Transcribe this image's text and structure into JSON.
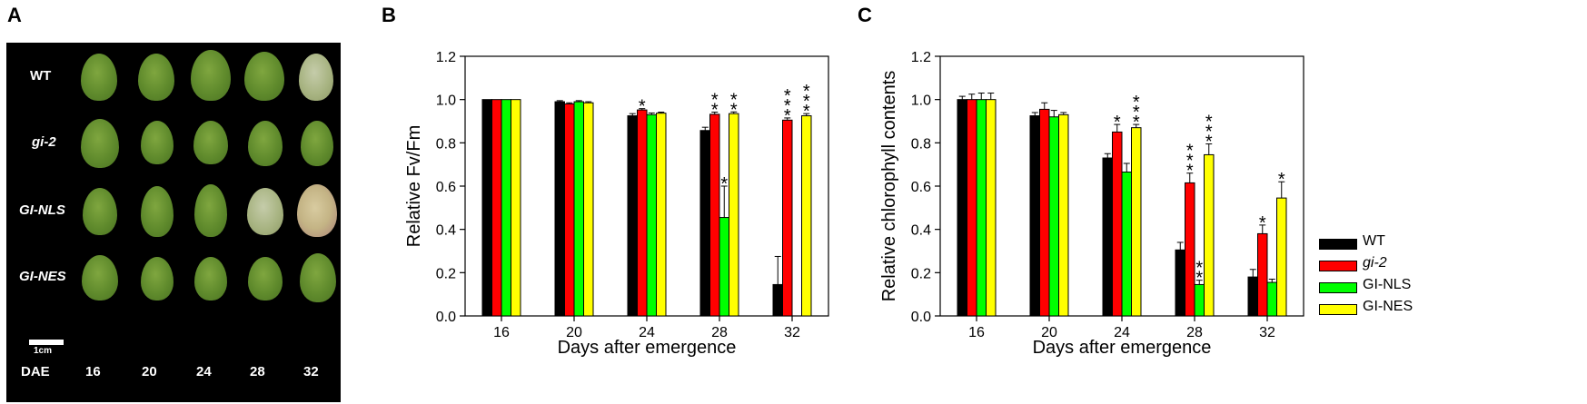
{
  "panels": {
    "a": {
      "letter": "A"
    },
    "b": {
      "letter": "B"
    },
    "c": {
      "letter": "C"
    }
  },
  "photo_panel": {
    "row_labels": [
      "WT",
      "gi-2",
      "GI-NLS",
      "GI-NES"
    ],
    "dae_label": "DAE",
    "day_labels": [
      "16",
      "20",
      "24",
      "28",
      "32"
    ],
    "scale_bar_label": "1cm"
  },
  "legend": [
    {
      "label": "WT",
      "color": "#000000"
    },
    {
      "label": "gi-2",
      "color": "#ff0000"
    },
    {
      "label": "GI-NLS",
      "color": "#00ff00"
    },
    {
      "label": "GI-NES",
      "color": "#ffff00"
    }
  ],
  "chart_data": [
    {
      "type": "bar",
      "panel": "B",
      "categories": [
        "16",
        "20",
        "24",
        "28",
        "32"
      ],
      "xlabel": "Days after emergence",
      "ylabel": "Relative Fv/Fm",
      "ylim": [
        0.0,
        1.2
      ],
      "yticks": [
        "0.0",
        "0.2",
        "0.4",
        "0.6",
        "0.8",
        "1.0",
        "1.2"
      ],
      "series": [
        {
          "name": "WT",
          "values": [
            1.0,
            0.99,
            0.925,
            0.857,
            0.145
          ],
          "errors": [
            0.0,
            0.005,
            0.01,
            0.015,
            0.13
          ]
        },
        {
          "name": "gi-2",
          "values": [
            1.0,
            0.98,
            0.952,
            0.932,
            0.905
          ],
          "errors": [
            0.0,
            0.005,
            0.006,
            0.01,
            0.01
          ]
        },
        {
          "name": "GI-NLS",
          "values": [
            1.0,
            0.99,
            0.93,
            0.455,
            0.0
          ],
          "errors": [
            0.0,
            0.005,
            0.008,
            0.145,
            0.0
          ]
        },
        {
          "name": "GI-NES",
          "values": [
            1.0,
            0.985,
            0.937,
            0.935,
            0.925
          ],
          "errors": [
            0.0,
            0.005,
            0.005,
            0.008,
            0.01
          ]
        }
      ],
      "annotations": [
        {
          "series": 1,
          "category": 2,
          "text": "*"
        },
        {
          "series": 1,
          "category": 3,
          "text": "**"
        },
        {
          "series": 2,
          "category": 3,
          "text": "*"
        },
        {
          "series": 3,
          "category": 3,
          "text": "**"
        },
        {
          "series": 1,
          "category": 4,
          "text": "***"
        },
        {
          "series": 3,
          "category": 4,
          "text": "***"
        }
      ]
    },
    {
      "type": "bar",
      "panel": "C",
      "categories": [
        "16",
        "20",
        "24",
        "28",
        "32"
      ],
      "xlabel": "Days after emergence",
      "ylabel": "Relative chlorophyll contents",
      "ylim": [
        0.0,
        1.2
      ],
      "yticks": [
        "0.0",
        "0.2",
        "0.4",
        "0.6",
        "0.8",
        "1.0",
        "1.2"
      ],
      "series": [
        {
          "name": "WT",
          "values": [
            1.0,
            0.925,
            0.73,
            0.305,
            0.18
          ],
          "errors": [
            0.015,
            0.015,
            0.02,
            0.035,
            0.035
          ]
        },
        {
          "name": "gi-2",
          "values": [
            1.0,
            0.955,
            0.85,
            0.615,
            0.38
          ],
          "errors": [
            0.025,
            0.03,
            0.035,
            0.045,
            0.04
          ]
        },
        {
          "name": "GI-NLS",
          "values": [
            1.0,
            0.92,
            0.665,
            0.145,
            0.155
          ],
          "errors": [
            0.03,
            0.03,
            0.04,
            0.02,
            0.015
          ]
        },
        {
          "name": "GI-NES",
          "values": [
            1.0,
            0.93,
            0.87,
            0.745,
            0.545
          ],
          "errors": [
            0.03,
            0.01,
            0.015,
            0.05,
            0.075
          ]
        }
      ],
      "annotations": [
        {
          "series": 1,
          "category": 2,
          "text": "*"
        },
        {
          "series": 3,
          "category": 2,
          "text": "***"
        },
        {
          "series": 1,
          "category": 3,
          "text": "***"
        },
        {
          "series": 2,
          "category": 3,
          "text": "**"
        },
        {
          "series": 3,
          "category": 3,
          "text": "***"
        },
        {
          "series": 1,
          "category": 4,
          "text": "*"
        },
        {
          "series": 3,
          "category": 4,
          "text": "*"
        }
      ]
    }
  ]
}
